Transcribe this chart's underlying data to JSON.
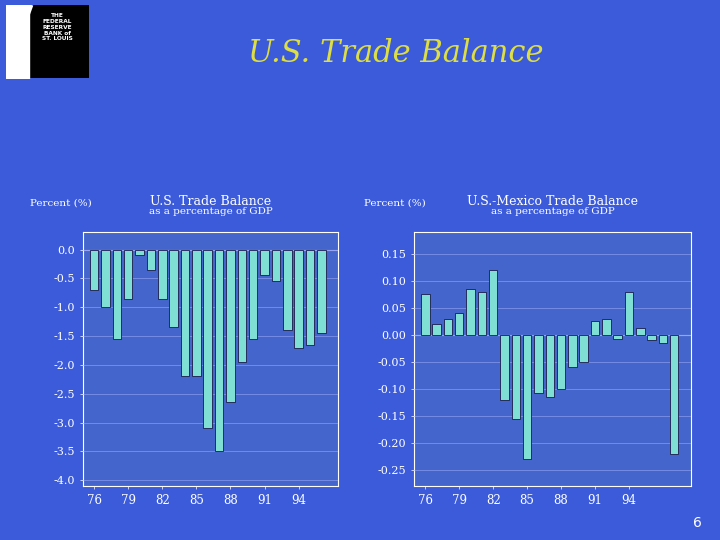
{
  "title": "U.S. Trade Balance",
  "bg_color": "#3b5bdb",
  "chart1_title": "U.S. Trade Balance",
  "chart1_subtitle": "as a percentage of GDP",
  "chart2_title": "U.S.-Mexico Trade Balance",
  "chart2_subtitle": "as a percentage of GDP",
  "ylabel": "Percent (%)",
  "chart1_years": [
    1976,
    1977,
    1978,
    1979,
    1980,
    1981,
    1982,
    1983,
    1984,
    1985,
    1986,
    1987,
    1988,
    1989,
    1990,
    1991,
    1992,
    1993,
    1994,
    1995,
    1996
  ],
  "chart1_values": [
    -0.7,
    -1.0,
    -1.55,
    -0.85,
    -0.1,
    -0.35,
    -0.85,
    -1.35,
    -2.2,
    -2.2,
    -3.1,
    -3.5,
    -2.65,
    -1.95,
    -1.55,
    -0.45,
    -0.55,
    -1.4,
    -1.7,
    -1.65,
    -1.45
  ],
  "chart2_years": [
    1976,
    1977,
    1978,
    1979,
    1980,
    1981,
    1982,
    1983,
    1984,
    1985,
    1986,
    1987,
    1988,
    1989,
    1990,
    1991,
    1992,
    1993,
    1994,
    1995,
    1996,
    1997,
    1998
  ],
  "chart2_values": [
    0.075,
    0.02,
    0.03,
    0.04,
    0.085,
    0.08,
    0.12,
    -0.12,
    -0.155,
    -0.23,
    -0.108,
    -0.115,
    -0.1,
    -0.06,
    -0.05,
    0.025,
    0.03,
    -0.008,
    0.08,
    0.012,
    -0.01,
    -0.015,
    -0.22
  ],
  "bar_face_color": "#7fdfd4",
  "bar_edge_color": "#1a1a4a",
  "chart_face_color": "#4466cc",
  "grid_color": "#8899ee",
  "text_color": "#ffffff",
  "title_color": "#dddd44",
  "chart1_ylim": [
    -4.1,
    0.3
  ],
  "chart1_yticks": [
    0.0,
    -0.5,
    -1.0,
    -1.5,
    -2.0,
    -2.5,
    -3.0,
    -3.5,
    -4.0
  ],
  "chart1_yticklabels": [
    "0.0",
    "-0.5",
    "-1.0",
    "-1.5",
    "-2.0",
    "-2.5",
    "-3.0",
    "-3.5",
    "-4.0"
  ],
  "chart2_ylim": [
    -0.28,
    0.19
  ],
  "chart2_yticks": [
    0.15,
    0.1,
    0.05,
    0.0,
    -0.05,
    -0.1,
    -0.15,
    -0.2,
    -0.25
  ],
  "chart2_yticklabels": [
    "0.15",
    "0.10",
    "0.05",
    "0.00",
    "-0.05",
    "-0.10",
    "-0.15",
    "-0.20",
    "-0.25"
  ],
  "xtick_labels": [
    "76",
    "79",
    "82",
    "85",
    "88",
    "91",
    "94"
  ]
}
